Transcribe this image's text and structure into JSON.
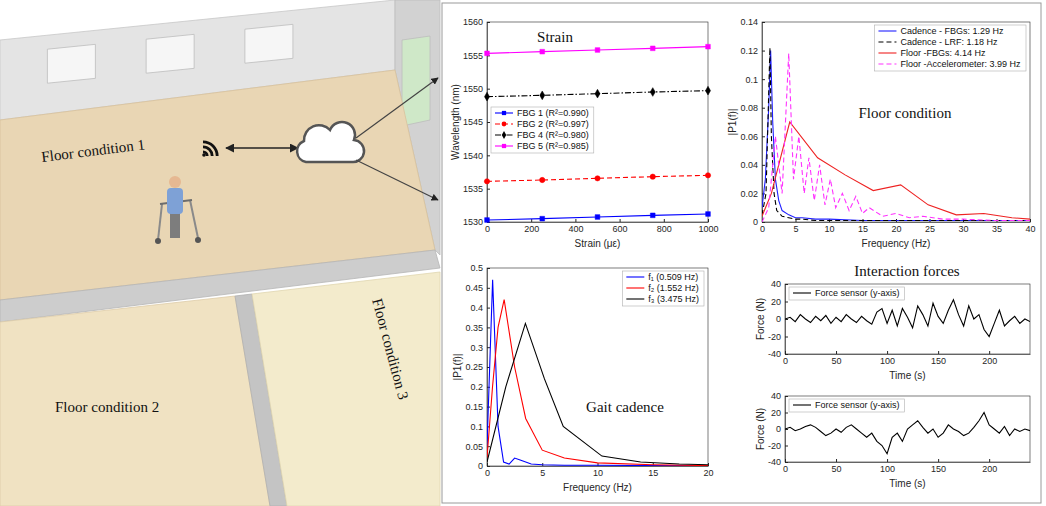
{
  "illustration": {
    "labels": [
      "Floor condition 1",
      "Floor condition 2",
      "Floor condition 3"
    ]
  },
  "chart_data": [
    {
      "type": "line",
      "title": "Strain",
      "x_label": "Strain (με)",
      "y_label": "Wavelength (nm)",
      "x": [
        0,
        250,
        500,
        750,
        1000
      ],
      "xlim": [
        0,
        1000
      ],
      "xticks": [
        0,
        200,
        400,
        600,
        800,
        1000
      ],
      "ylim": [
        1530,
        1560
      ],
      "yticks": [
        1530,
        1535,
        1540,
        1545,
        1550,
        1555,
        1560
      ],
      "legend": "center left",
      "series": [
        {
          "name": "FBG 1 (R²=0.990)",
          "color": "#0000ff",
          "marker": "square",
          "line_style": "solid",
          "values": [
            1530.3,
            1530.5,
            1530.75,
            1531.0,
            1531.2
          ]
        },
        {
          "name": "FBG 2 (R²=0.997)",
          "color": "#ff0000",
          "marker": "circle",
          "line_style": "dashed",
          "values": [
            1536.1,
            1536.3,
            1536.55,
            1536.8,
            1537.0
          ]
        },
        {
          "name": "FBG 4 (R²=0.980)",
          "color": "#000000",
          "marker": "diamond",
          "line_style": "dashdot",
          "values": [
            1548.8,
            1549.0,
            1549.25,
            1549.5,
            1549.7
          ]
        },
        {
          "name": "FBG 5 (R²=0.985)",
          "color": "#ff00ff",
          "marker": "square",
          "line_style": "solid",
          "values": [
            1555.3,
            1555.55,
            1555.8,
            1556.05,
            1556.3
          ]
        }
      ]
    },
    {
      "type": "line",
      "title": "Floor condition",
      "x_label": "Frequency (Hz)",
      "y_label": "|P1(f)|",
      "xlim": [
        0,
        40
      ],
      "xticks": [
        0,
        5,
        10,
        15,
        20,
        25,
        30,
        35,
        40
      ],
      "ylim": [
        0,
        0.14
      ],
      "yticks": [
        0,
        0.02,
        0.04,
        0.06,
        0.08,
        0.1,
        0.12,
        0.14
      ],
      "legend": "upper right",
      "series": [
        {
          "name": "Cadence - FBGs: 1.29 Hz",
          "color": "#1f1fff",
          "line_style": "solid",
          "x": [
            0,
            0.5,
            1,
            1.29,
            1.6,
            2,
            2.5,
            3,
            4,
            5,
            6,
            8,
            10,
            15,
            20,
            30,
            40
          ],
          "values": [
            0.01,
            0.03,
            0.08,
            0.12,
            0.07,
            0.03,
            0.015,
            0.008,
            0.005,
            0.003,
            0.003,
            0.002,
            0.002,
            0.001,
            0.001,
            0.001,
            0.001
          ]
        },
        {
          "name": "Cadence - LRF: 1.18 Hz",
          "color": "#000000",
          "line_style": "dashed",
          "x": [
            0,
            0.6,
            1,
            1.18,
            1.4,
            1.8,
            2.2,
            3,
            4,
            5,
            6,
            8,
            10,
            15,
            20,
            30,
            40
          ],
          "values": [
            0.005,
            0.02,
            0.09,
            0.122,
            0.06,
            0.02,
            0.008,
            0.004,
            0.003,
            0.002,
            0.002,
            0.001,
            0.001,
            0.001,
            0.001,
            0.001,
            0.001
          ]
        },
        {
          "name": "Floor -FBGs: 4.14 Hz",
          "color": "#ee2222",
          "line_style": "solid",
          "x": [
            0,
            1.4,
            4.14,
            8.3,
            12.4,
            16.6,
            20.7,
            24.8,
            29,
            33.1,
            37.3,
            40
          ],
          "values": [
            0.004,
            0.02,
            0.07,
            0.045,
            0.033,
            0.022,
            0.026,
            0.012,
            0.005,
            0.006,
            0.003,
            0.002
          ]
        },
        {
          "name": "Floor -Accelerometer: 3.99 Hz",
          "color": "#ff33ff",
          "line_style": "dashed",
          "x": [
            0,
            1,
            2,
            3,
            3.99,
            4.7,
            5.5,
            6.3,
            7,
            7.8,
            8.6,
            9.4,
            10.2,
            11,
            12,
            13,
            14,
            15,
            16,
            18,
            20,
            22,
            24,
            27,
            30,
            35,
            40
          ],
          "values": [
            0,
            0.01,
            0.06,
            0.02,
            0.118,
            0.03,
            0.06,
            0.02,
            0.045,
            0.015,
            0.04,
            0.012,
            0.03,
            0.01,
            0.02,
            0.008,
            0.018,
            0.006,
            0.01,
            0.004,
            0.006,
            0.003,
            0.004,
            0.002,
            0.002,
            0.001,
            0.001
          ]
        }
      ]
    },
    {
      "type": "line",
      "title": "Gait cadence",
      "x_label": "Frequency (Hz)",
      "y_label": "|P1(f)|",
      "xlim": [
        0,
        20
      ],
      "xticks": [
        0,
        5,
        10,
        15,
        20
      ],
      "ylim": [
        0,
        0.5
      ],
      "yticks": [
        0,
        0.05,
        0.1,
        0.15,
        0.2,
        0.25,
        0.3,
        0.35,
        0.4,
        0.45,
        0.5
      ],
      "legend": "upper right",
      "series": [
        {
          "name": "f₁ (0.509 Hz)",
          "color": "#0000ff",
          "line_style": "solid",
          "x": [
            0,
            0.509,
            1,
            1.5,
            2,
            2.5,
            3,
            4,
            5,
            7,
            10,
            15,
            20
          ],
          "values": [
            0.05,
            0.47,
            0.1,
            0.01,
            0.005,
            0.02,
            0.015,
            0.005,
            0.003,
            0.002,
            0.002,
            0.001,
            0.001
          ]
        },
        {
          "name": "f₂ (1.552 Hz)",
          "color": "#ff0000",
          "line_style": "solid",
          "x": [
            0,
            0.5,
            1,
            1.552,
            2.5,
            3.5,
            5,
            7,
            10,
            15,
            20
          ],
          "values": [
            0.02,
            0.2,
            0.35,
            0.42,
            0.25,
            0.12,
            0.04,
            0.02,
            0.008,
            0.003,
            0.001
          ]
        },
        {
          "name": "f₃ (3.475 Hz)",
          "color": "#000000",
          "line_style": "solid",
          "x": [
            0,
            1.7,
            3.475,
            5.2,
            6.9,
            10.4,
            13.9,
            17.4,
            20
          ],
          "values": [
            0.01,
            0.2,
            0.36,
            0.22,
            0.1,
            0.025,
            0.01,
            0.005,
            0.003
          ]
        }
      ]
    },
    {
      "type": "line",
      "title": "Interaction forces",
      "x_label": "Time (s)",
      "y_label": "Force (N)",
      "x": [
        0,
        5,
        10,
        15,
        20,
        25,
        30,
        35,
        40,
        45,
        50,
        55,
        60,
        65,
        70,
        75,
        80,
        85,
        90,
        95,
        100,
        105,
        110,
        115,
        120,
        125,
        130,
        135,
        140,
        145,
        150,
        155,
        160,
        165,
        170,
        175,
        180,
        185,
        190,
        195,
        200,
        205,
        210,
        215,
        220,
        225,
        230,
        235,
        240
      ],
      "xlim": [
        0,
        240
      ],
      "xticks": [
        0,
        50,
        100,
        150,
        200
      ],
      "ylim": [
        -40,
        40
      ],
      "yticks": [
        -40,
        -20,
        0,
        20,
        40
      ],
      "legend": "upper left",
      "series": [
        {
          "name": "Force sensor (y-axis)",
          "color": "#000000",
          "line_style": "solid",
          "values": [
            0,
            2,
            -3,
            5,
            0,
            -4,
            3,
            -2,
            4,
            -5,
            2,
            -3,
            5,
            0,
            -4,
            3,
            -2,
            -6,
            8,
            12,
            -5,
            10,
            -8,
            12,
            2,
            -10,
            15,
            5,
            -8,
            18,
            3,
            -5,
            10,
            22,
            5,
            -8,
            15,
            0,
            5,
            -12,
            -20,
            -5,
            10,
            -8,
            -2,
            3,
            -5,
            0,
            -3
          ]
        }
      ]
    },
    {
      "type": "line",
      "x_label": "Time (s)",
      "y_label": "Force (N)",
      "x": [
        0,
        5,
        10,
        15,
        20,
        25,
        30,
        35,
        40,
        45,
        50,
        55,
        60,
        65,
        70,
        75,
        80,
        85,
        90,
        95,
        100,
        105,
        110,
        115,
        120,
        125,
        130,
        135,
        140,
        145,
        150,
        155,
        160,
        165,
        170,
        175,
        180,
        185,
        190,
        195,
        200,
        205,
        210,
        215,
        220,
        225,
        230,
        235,
        240
      ],
      "xlim": [
        0,
        240
      ],
      "xticks": [
        0,
        50,
        100,
        150,
        200
      ],
      "ylim": [
        -40,
        40
      ],
      "yticks": [
        -40,
        -20,
        0,
        20,
        40
      ],
      "legend": "upper left",
      "series": [
        {
          "name": "Force sensor (y-axis)",
          "color": "#000000",
          "line_style": "solid",
          "values": [
            0,
            2,
            -2,
            0,
            3,
            5,
            2,
            -3,
            -8,
            -5,
            0,
            -4,
            2,
            5,
            0,
            -5,
            -10,
            -5,
            -15,
            -20,
            -30,
            -10,
            -5,
            -15,
            0,
            5,
            10,
            2,
            -5,
            0,
            -10,
            -5,
            5,
            0,
            -3,
            -8,
            -5,
            2,
            10,
            20,
            5,
            0,
            -5,
            3,
            -8,
            0,
            -3,
            0,
            -2
          ]
        }
      ]
    }
  ]
}
